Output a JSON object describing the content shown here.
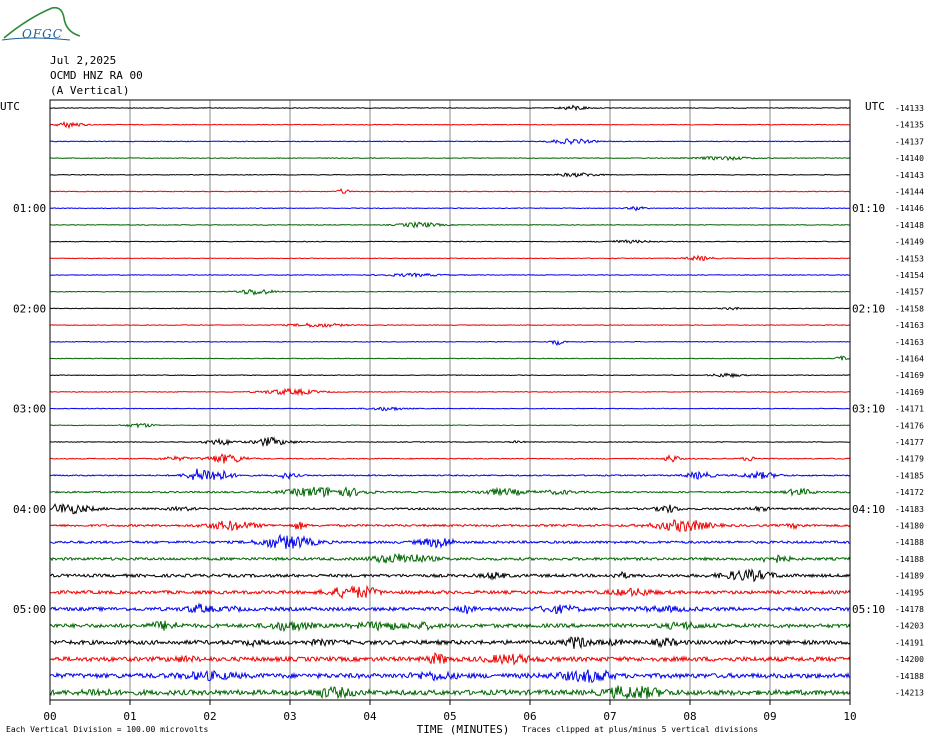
{
  "header": {
    "logo_text": "OFGC",
    "date": "Jul 2,2025",
    "station": "OCMD HNZ RA 00",
    "component": "(A Vertical)"
  },
  "footer": {
    "scale_note": "Each Vertical Division =  100.00 microvolts",
    "clip_note": "Traces clipped at plus/minus 5 vertical divisions"
  },
  "chart_data": {
    "type": "line",
    "title": "",
    "xlabel": "TIME (MINUTES)",
    "ylabel": "",
    "xlim": [
      0,
      10
    ],
    "x_ticks": [
      "00",
      "01",
      "02",
      "03",
      "04",
      "05",
      "06",
      "07",
      "08",
      "09",
      "10"
    ],
    "left_axis_label": "UTC",
    "right_axis_label": "UTC",
    "left_time_labels": [
      {
        "row": 6,
        "label": "01:00"
      },
      {
        "row": 12,
        "label": "02:00"
      },
      {
        "row": 18,
        "label": "03:00"
      },
      {
        "row": 24,
        "label": "04:00"
      },
      {
        "row": 30,
        "label": "05:00"
      }
    ],
    "right_time_labels": [
      {
        "row": 6,
        "label": "01:10"
      },
      {
        "row": 12,
        "label": "02:10"
      },
      {
        "row": 18,
        "label": "03:10"
      },
      {
        "row": 24,
        "label": "04:10"
      },
      {
        "row": 30,
        "label": "05:10"
      }
    ],
    "trace_colors": [
      "#000000",
      "#ee0000",
      "#0000ee",
      "#006600"
    ],
    "offsets": [
      "-14133",
      "-14135",
      "-14137",
      "-14140",
      "-14143",
      "-14144",
      "-14146",
      "-14148",
      "-14149",
      "-14153",
      "-14154",
      "-14157",
      "-14158",
      "-14163",
      "-14163",
      "-14164",
      "-14169",
      "-14169",
      "-14171",
      "-14176",
      "-14177",
      "-14179",
      "-14185",
      "-14172",
      "-14183",
      "-14180",
      "-14188",
      "-14188",
      "-14189",
      "-14195",
      "-14178",
      "-14203",
      "-14191",
      "-14200",
      "-14188",
      "-14213"
    ],
    "trace_count": 36
  }
}
